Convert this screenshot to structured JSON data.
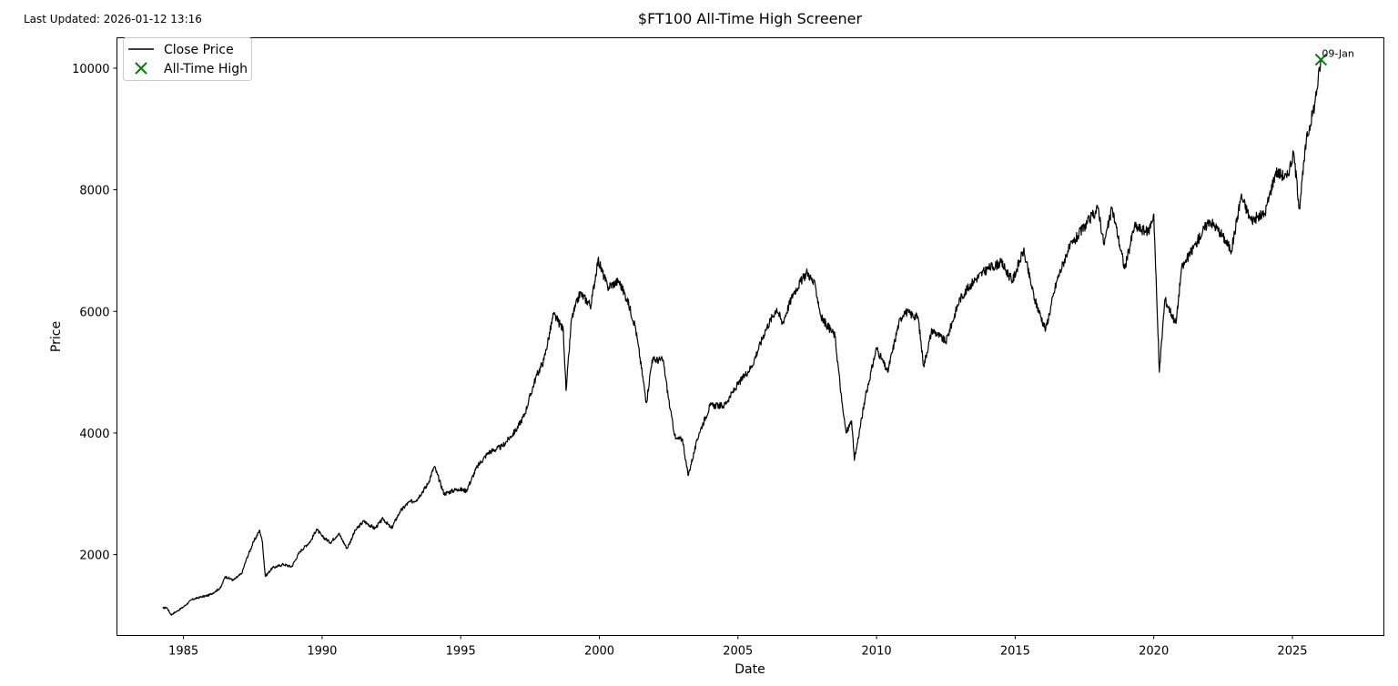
{
  "header": {
    "last_updated": "Last Updated: 2026-01-12 13:16"
  },
  "chart_data": {
    "type": "line",
    "title": "$FT100 All-Time High Screener",
    "xlabel": "Date",
    "ylabel": "Price",
    "xlim": [
      1982.6,
      2028.3
    ],
    "ylim": [
      670,
      10500
    ],
    "xticks": [
      1985,
      1990,
      1995,
      2000,
      2005,
      2010,
      2015,
      2020,
      2025
    ],
    "xtick_labels": [
      "1985",
      "1990",
      "1995",
      "2000",
      "2005",
      "2010",
      "2015",
      "2020",
      "2025"
    ],
    "yticks": [
      2000,
      4000,
      6000,
      8000,
      10000
    ],
    "ytick_labels": [
      "2000",
      "4000",
      "6000",
      "8000",
      "10000"
    ],
    "grid": false,
    "legend_position": "top-left",
    "series": [
      {
        "name": "Close Price",
        "color": "#000000",
        "points": [
          [
            1984.25,
            1120
          ],
          [
            1984.4,
            1130
          ],
          [
            1984.55,
            1010
          ],
          [
            1984.8,
            1080
          ],
          [
            1985.0,
            1140
          ],
          [
            1985.3,
            1260
          ],
          [
            1985.6,
            1300
          ],
          [
            1985.9,
            1330
          ],
          [
            1986.1,
            1380
          ],
          [
            1986.35,
            1460
          ],
          [
            1986.5,
            1640
          ],
          [
            1986.8,
            1580
          ],
          [
            1987.1,
            1690
          ],
          [
            1987.3,
            1960
          ],
          [
            1987.55,
            2230
          ],
          [
            1987.75,
            2400
          ],
          [
            1987.85,
            2200
          ],
          [
            1987.95,
            1640
          ],
          [
            1988.2,
            1780
          ],
          [
            1988.6,
            1840
          ],
          [
            1988.9,
            1800
          ],
          [
            1989.2,
            2050
          ],
          [
            1989.6,
            2230
          ],
          [
            1989.8,
            2420
          ],
          [
            1990.0,
            2300
          ],
          [
            1990.3,
            2200
          ],
          [
            1990.6,
            2350
          ],
          [
            1990.9,
            2100
          ],
          [
            1991.2,
            2400
          ],
          [
            1991.5,
            2550
          ],
          [
            1991.9,
            2430
          ],
          [
            1992.2,
            2590
          ],
          [
            1992.5,
            2430
          ],
          [
            1992.8,
            2700
          ],
          [
            1993.1,
            2850
          ],
          [
            1993.4,
            2900
          ],
          [
            1993.8,
            3150
          ],
          [
            1994.05,
            3450
          ],
          [
            1994.4,
            3000
          ],
          [
            1994.9,
            3080
          ],
          [
            1995.2,
            3050
          ],
          [
            1995.6,
            3450
          ],
          [
            1996.0,
            3680
          ],
          [
            1996.5,
            3780
          ],
          [
            1997.0,
            4050
          ],
          [
            1997.3,
            4300
          ],
          [
            1997.7,
            4900
          ],
          [
            1998.0,
            5200
          ],
          [
            1998.35,
            5950
          ],
          [
            1998.7,
            5700
          ],
          [
            1998.8,
            4700
          ],
          [
            1999.0,
            5880
          ],
          [
            1999.3,
            6300
          ],
          [
            1999.7,
            6100
          ],
          [
            1999.95,
            6850
          ],
          [
            2000.3,
            6400
          ],
          [
            2000.7,
            6500
          ],
          [
            2001.0,
            6200
          ],
          [
            2001.3,
            5750
          ],
          [
            2001.7,
            4500
          ],
          [
            2001.9,
            5200
          ],
          [
            2002.3,
            5200
          ],
          [
            2002.55,
            4400
          ],
          [
            2002.75,
            3900
          ],
          [
            2003.0,
            3900
          ],
          [
            2003.2,
            3300
          ],
          [
            2003.6,
            4000
          ],
          [
            2004.0,
            4450
          ],
          [
            2004.5,
            4450
          ],
          [
            2005.0,
            4800
          ],
          [
            2005.5,
            5100
          ],
          [
            2006.0,
            5700
          ],
          [
            2006.4,
            6050
          ],
          [
            2006.6,
            5800
          ],
          [
            2007.0,
            6300
          ],
          [
            2007.5,
            6650
          ],
          [
            2007.8,
            6400
          ],
          [
            2008.0,
            5900
          ],
          [
            2008.5,
            5600
          ],
          [
            2008.75,
            4500
          ],
          [
            2008.9,
            4000
          ],
          [
            2009.1,
            4200
          ],
          [
            2009.2,
            3550
          ],
          [
            2009.6,
            4600
          ],
          [
            2010.0,
            5400
          ],
          [
            2010.4,
            5000
          ],
          [
            2010.8,
            5800
          ],
          [
            2011.0,
            6000
          ],
          [
            2011.5,
            5900
          ],
          [
            2011.7,
            5100
          ],
          [
            2012.0,
            5700
          ],
          [
            2012.5,
            5500
          ],
          [
            2013.0,
            6200
          ],
          [
            2013.5,
            6500
          ],
          [
            2014.0,
            6700
          ],
          [
            2014.5,
            6800
          ],
          [
            2014.9,
            6500
          ],
          [
            2015.3,
            7000
          ],
          [
            2015.7,
            6200
          ],
          [
            2016.1,
            5700
          ],
          [
            2016.5,
            6500
          ],
          [
            2016.9,
            7000
          ],
          [
            2017.5,
            7400
          ],
          [
            2018.0,
            7700
          ],
          [
            2018.2,
            7100
          ],
          [
            2018.5,
            7700
          ],
          [
            2018.95,
            6700
          ],
          [
            2019.3,
            7400
          ],
          [
            2019.8,
            7300
          ],
          [
            2020.0,
            7600
          ],
          [
            2020.2,
            5000
          ],
          [
            2020.4,
            6200
          ],
          [
            2020.8,
            5800
          ],
          [
            2021.0,
            6700
          ],
          [
            2021.5,
            7100
          ],
          [
            2022.0,
            7500
          ],
          [
            2022.4,
            7300
          ],
          [
            2022.8,
            7000
          ],
          [
            2023.15,
            7900
          ],
          [
            2023.5,
            7500
          ],
          [
            2024.0,
            7600
          ],
          [
            2024.4,
            8300
          ],
          [
            2024.8,
            8200
          ],
          [
            2025.05,
            8600
          ],
          [
            2025.25,
            7700
          ],
          [
            2025.5,
            8800
          ],
          [
            2025.8,
            9400
          ],
          [
            2026.03,
            10140
          ]
        ]
      }
    ],
    "all_time_high": {
      "name": "All-Time High",
      "color": "#008000",
      "x": 2026.03,
      "y": 10140,
      "label": "09-Jan"
    }
  }
}
